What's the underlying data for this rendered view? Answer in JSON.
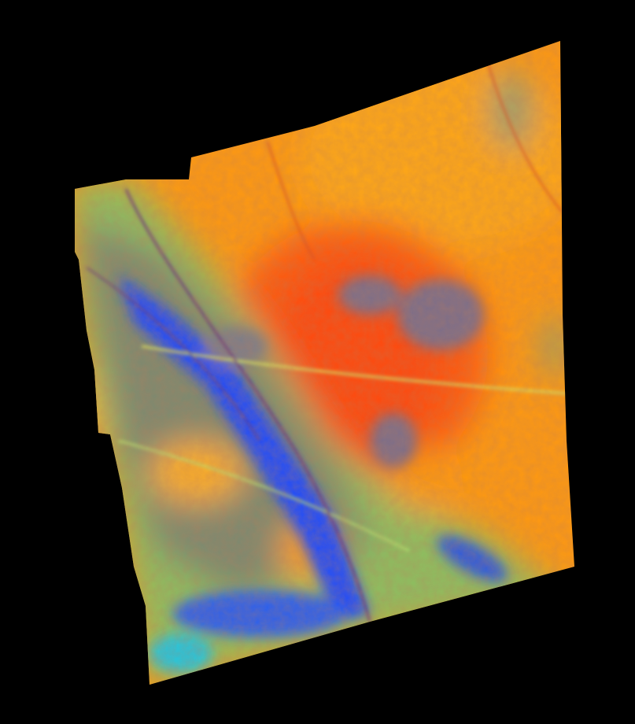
{
  "palette": {
    "background": "#000000",
    "base": "#ff9a10",
    "hot": "#ff4a10",
    "warm": "#ffb820",
    "yellow": "#f5e020",
    "green": "#8cc060",
    "gray_violet": "#7c6e8a",
    "blue": "#1a4cff",
    "cyan": "#20c8e0"
  }
}
